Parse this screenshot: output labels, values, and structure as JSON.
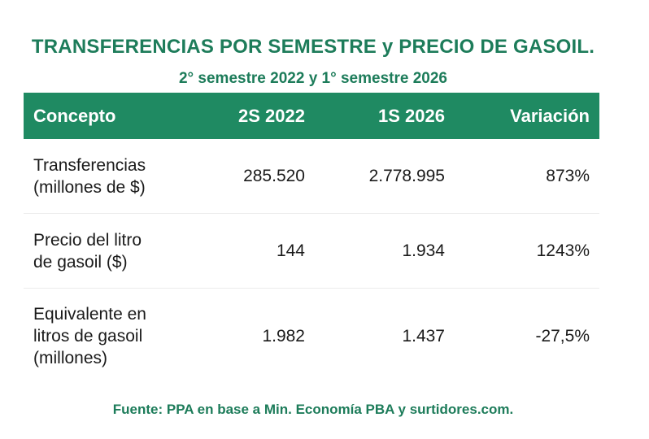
{
  "title": "TRANSFERENCIAS POR SEMESTRE y PRECIO DE GASOIL.",
  "subtitle": "2° semestre 2022 y 1° semestre 2026",
  "table": {
    "headers": [
      "Concepto",
      "2S 2022",
      "1S 2026",
      "Variación"
    ],
    "rows": [
      {
        "concept": "Transferencias\n(millones de $)",
        "s2_2022": "285.520",
        "s1_2026": "2.778.995",
        "variation": "873%"
      },
      {
        "concept": "Precio del litro\nde gasoil ($)",
        "s2_2022": "144",
        "s1_2026": "1.934",
        "variation": "1243%"
      },
      {
        "concept": "Equivalente en\nlitros de gasoil\n(millones)",
        "s2_2022": "1.982",
        "s1_2026": "1.437",
        "variation": "-27,5%"
      }
    ]
  },
  "source": "Fuente: PPA en base a Min. Economía PBA y surtidores.com.",
  "colors": {
    "accent": "#1d7c5a",
    "header_bg": "#1f8a62",
    "header_text": "#ffffff"
  }
}
